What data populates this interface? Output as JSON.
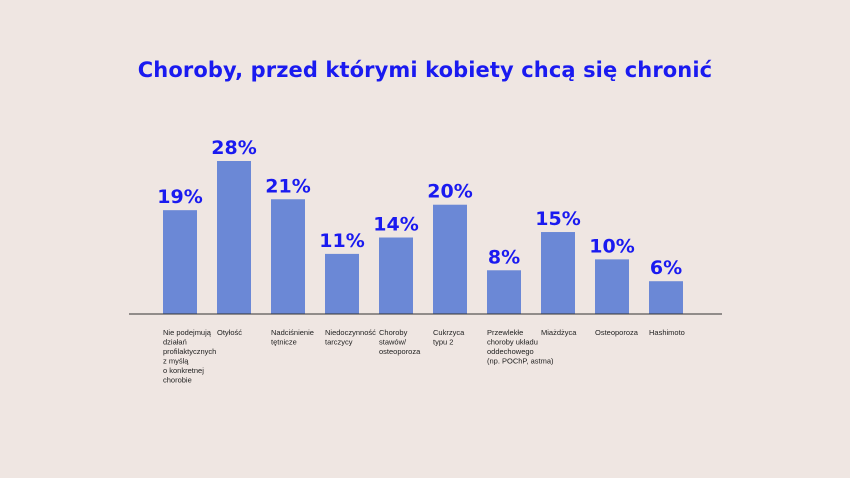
{
  "chart_data": {
    "type": "bar",
    "title": "Choroby, przed którymi kobiety chcą się chronić",
    "categories": [
      [
        "Nie podejmują",
        "działań",
        "profilaktycznych",
        "z myślą",
        "o konkretnej",
        "chorobie"
      ],
      [
        "Otyłość"
      ],
      [
        "Nadciśnienie",
        "tętnicze"
      ],
      [
        "Niedoczynność",
        "tarczycy"
      ],
      [
        "Choroby",
        "stawów/",
        "osteoporoza"
      ],
      [
        "Cukrzyca",
        "typu 2"
      ],
      [
        "Przewlekłe",
        "choroby układu",
        "oddechowego",
        "(np. POChP, astma)"
      ],
      [
        "Miażdżyca"
      ],
      [
        "Osteoporoza"
      ],
      [
        "Hashimoto"
      ]
    ],
    "values": [
      19,
      28,
      21,
      11,
      14,
      20,
      8,
      15,
      10,
      6
    ],
    "value_labels": [
      "19%",
      "28%",
      "21%",
      "11%",
      "14%",
      "20%",
      "8%",
      "15%",
      "10%",
      "6%"
    ],
    "xlabel": "",
    "ylabel": "",
    "ylim": [
      0,
      28
    ],
    "grid": false,
    "legend": "none",
    "colors": {
      "bar": "#6B88D6",
      "label": "#1A1AF0",
      "axis": "#333333",
      "background": "#EFE6E2"
    }
  }
}
